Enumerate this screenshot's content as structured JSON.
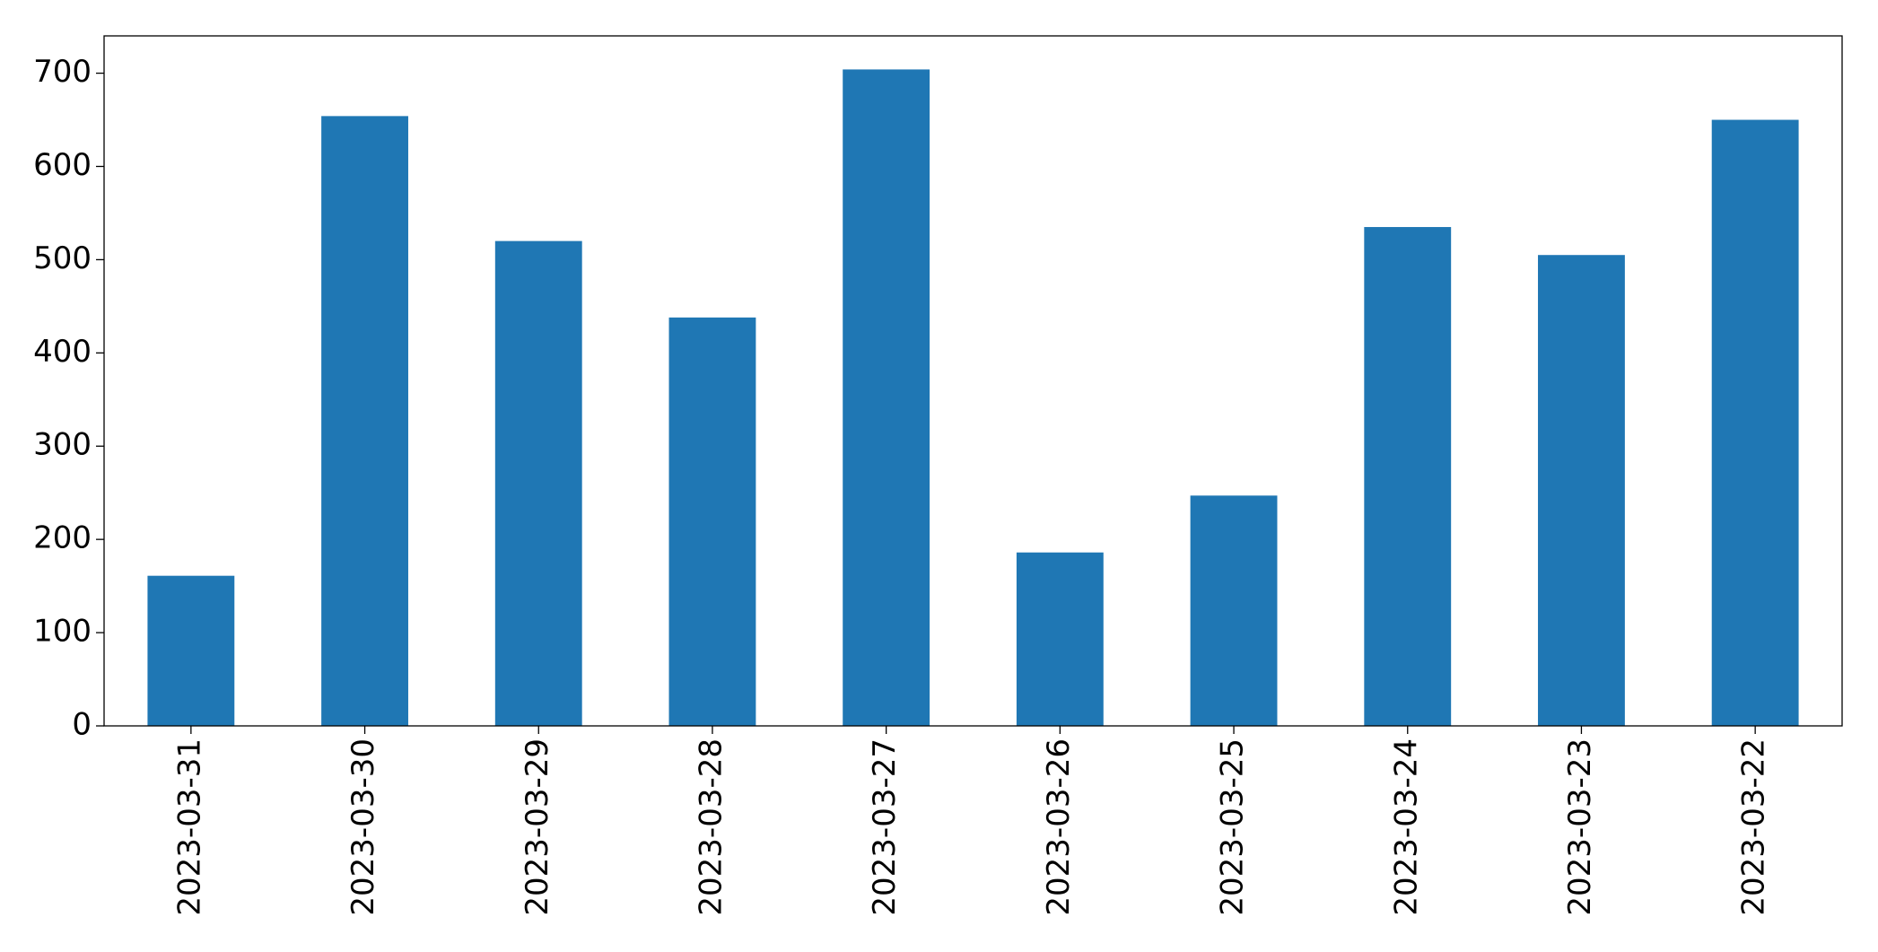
{
  "chart_data": {
    "type": "bar",
    "categories": [
      "2023-03-31",
      "2023-03-30",
      "2023-03-29",
      "2023-03-28",
      "2023-03-27",
      "2023-03-26",
      "2023-03-25",
      "2023-03-24",
      "2023-03-23",
      "2023-03-22"
    ],
    "values": [
      161,
      654,
      520,
      438,
      704,
      186,
      247,
      535,
      505,
      650
    ],
    "color": "#1f77b4",
    "ylim": [
      0,
      740
    ],
    "yticks": [
      0,
      100,
      200,
      300,
      400,
      500,
      600,
      700
    ],
    "grid": false
  }
}
